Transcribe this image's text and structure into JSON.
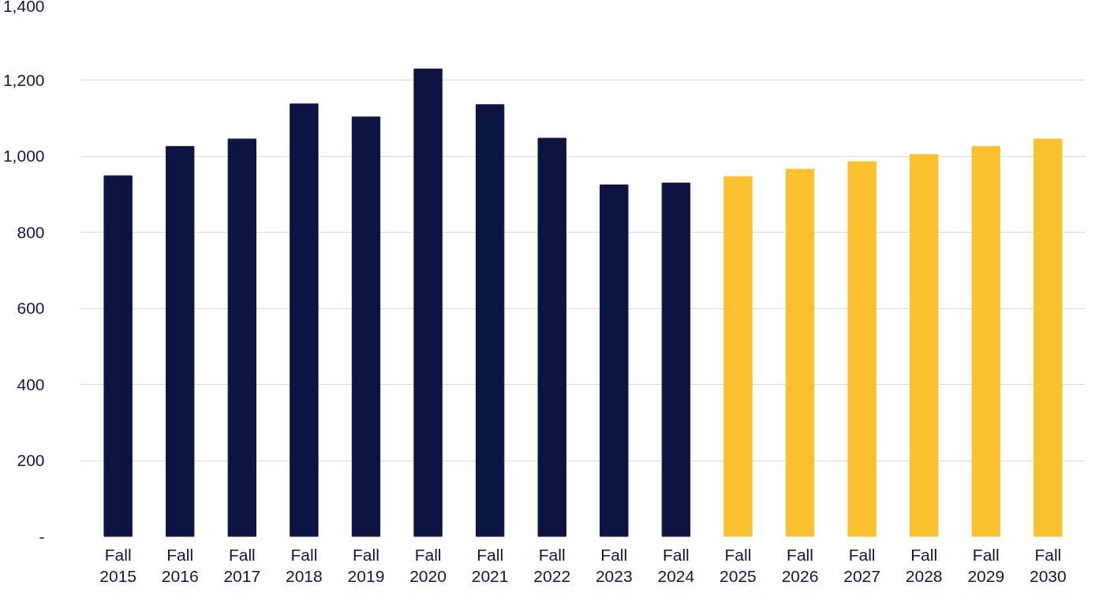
{
  "chart_data": {
    "type": "bar",
    "categories": [
      "Fall\n2015",
      "Fall\n2016",
      "Fall\n2017",
      "Fall\n2018",
      "Fall\n2019",
      "Fall\n2020",
      "Fall\n2021",
      "Fall\n2022",
      "Fall\n2023",
      "Fall\n2024",
      "Fall\n2025",
      "Fall\n2026",
      "Fall\n2027",
      "Fall\n2028",
      "Fall\n2029",
      "Fall\n2030"
    ],
    "values": [
      949,
      1026,
      1046,
      1138,
      1104,
      1230,
      1136,
      1048,
      925,
      930,
      947,
      966,
      986,
      1005,
      1026,
      1046
    ],
    "colors": [
      "#0b1442",
      "#0b1442",
      "#0b1442",
      "#0b1442",
      "#0b1442",
      "#0b1442",
      "#0b1442",
      "#0b1442",
      "#0b1442",
      "#0b1442",
      "#fbc12f",
      "#fbc12f",
      "#fbc12f",
      "#fbc12f",
      "#fbc12f",
      "#fbc12f"
    ],
    "ylim": [
      0,
      1400
    ],
    "yticks": [
      {
        "value": 0,
        "label": "-"
      },
      {
        "value": 200,
        "label": "200"
      },
      {
        "value": 400,
        "label": "400"
      },
      {
        "value": 600,
        "label": "600"
      },
      {
        "value": 800,
        "label": "800"
      },
      {
        "value": 1000,
        "label": "1,000"
      },
      {
        "value": 1200,
        "label": "1,200"
      },
      {
        "value": 1400,
        "label": "1,400"
      }
    ],
    "grid": "y"
  }
}
